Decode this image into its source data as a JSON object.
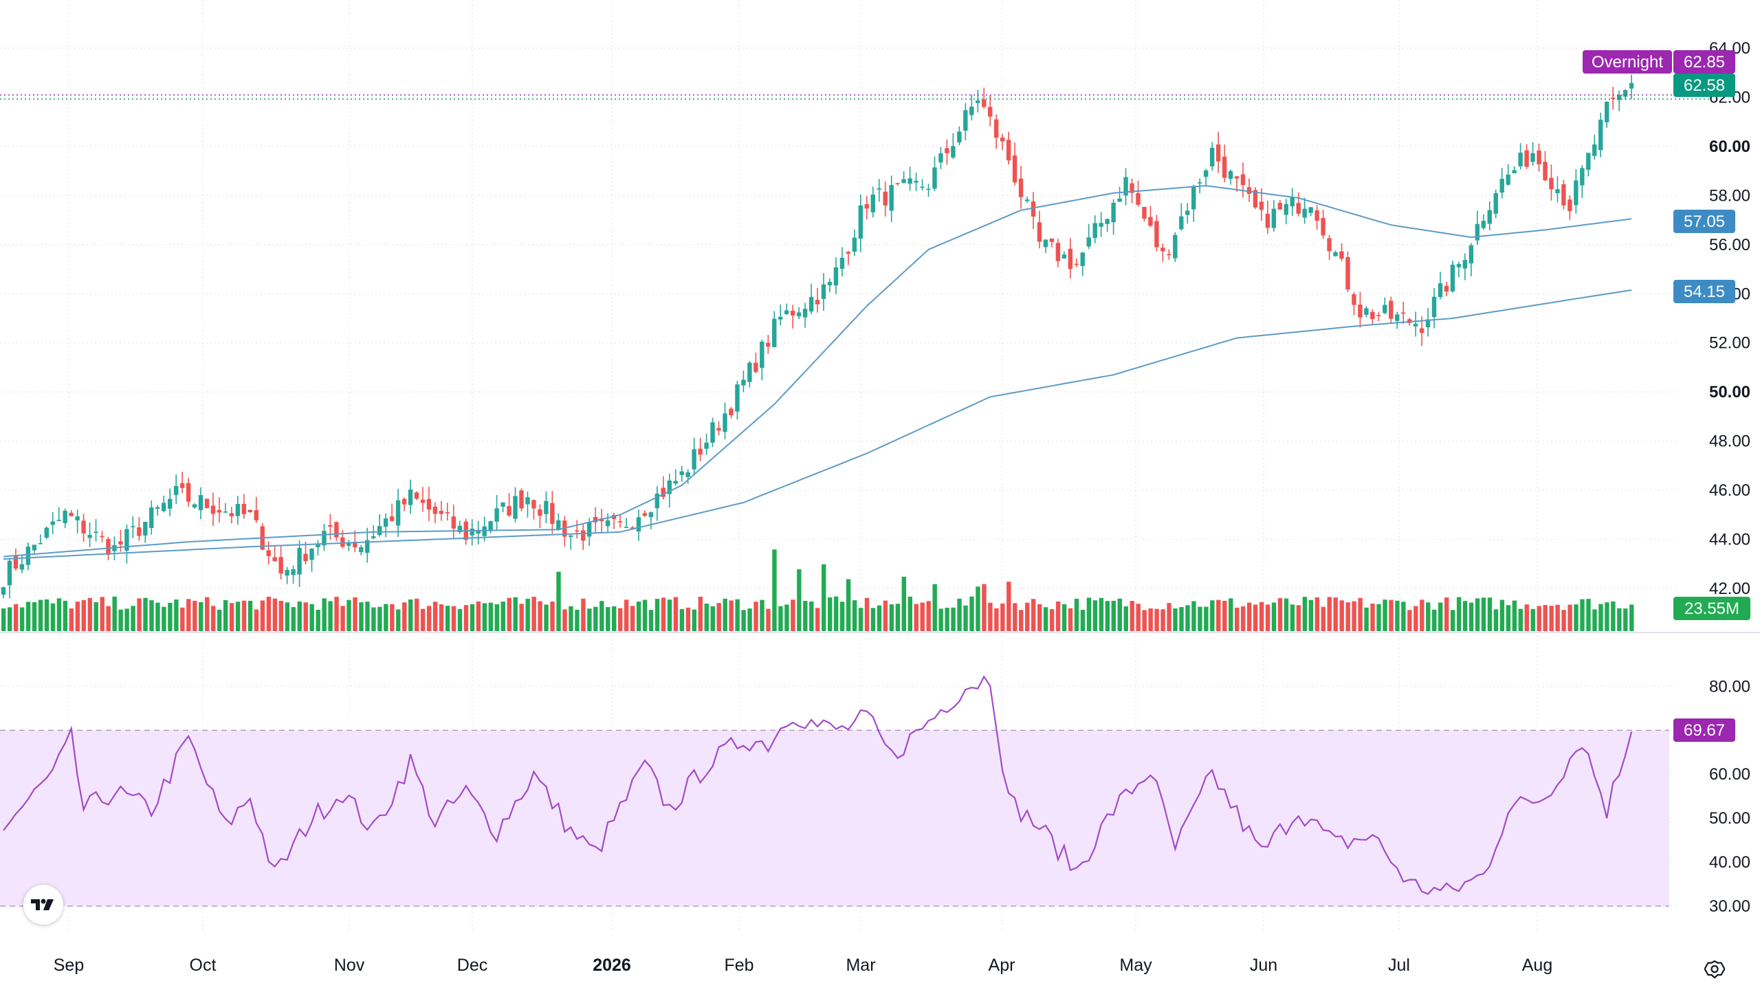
{
  "colors": {
    "up": "#26a69a",
    "up_volume": "#22ab53",
    "down": "#ef5350",
    "ma50": "#5b9bc7",
    "ma200": "#5b9bc7",
    "rsi_line": "#a24bc8",
    "rsi_band": "#f3e5fd",
    "overnight": "#9c27b0",
    "last_price": "#089981",
    "ma_tag": "#3d8bc4",
    "volume_tag": "#22ab53",
    "grid": "#e8e9ec"
  },
  "price_axis": {
    "ticks": [
      "64.00",
      "62.00",
      "60.00",
      "58.00",
      "56.00",
      "54.00",
      "52.00",
      "50.00",
      "48.00",
      "46.00",
      "44.00",
      "42.00"
    ],
    "bold_ticks": [
      "60.00",
      "50.00"
    ]
  },
  "rsi_axis": {
    "ticks": [
      "80.00",
      "60.00",
      "50.00",
      "40.00",
      "30.00"
    ],
    "upper_band": 70,
    "lower_band": 30
  },
  "time_axis": {
    "labels": [
      "Sep",
      "Oct",
      "Nov",
      "Dec",
      "2026",
      "Feb",
      "Mar",
      "Apr",
      "May",
      "Jun",
      "Jul",
      "Aug"
    ],
    "bold_labels": [
      "2026"
    ]
  },
  "tags": {
    "overnight_label": "Overnight",
    "overnight_price": "62.85",
    "last_price": "62.58",
    "ma50": "57.05",
    "ma200": "54.15",
    "volume": "23.55M",
    "rsi": "69.67"
  },
  "chart_data": {
    "type": "candlestick",
    "symbol_interval": "daily",
    "price_range": [
      42,
      64
    ],
    "rsi_range": [
      25,
      86
    ],
    "keyframes": {
      "close": [
        [
          0,
          42.5
        ],
        [
          10,
          45.0
        ],
        [
          18,
          43.6
        ],
        [
          28,
          45.8
        ],
        [
          40,
          44.9
        ],
        [
          45,
          42.6
        ],
        [
          52,
          44.2
        ],
        [
          58,
          43.8
        ],
        [
          66,
          45.7
        ],
        [
          75,
          44.2
        ],
        [
          85,
          45.8
        ],
        [
          92,
          44.2
        ],
        [
          100,
          44.5
        ],
        [
          110,
          46.6
        ],
        [
          118,
          49.5
        ],
        [
          126,
          53.0
        ],
        [
          134,
          54.3
        ],
        [
          140,
          57.8
        ],
        [
          150,
          58.5
        ],
        [
          158,
          62.0
        ],
        [
          163,
          59.5
        ],
        [
          168,
          56.0
        ],
        [
          174,
          55.2
        ],
        [
          182,
          58.6
        ],
        [
          188,
          55.5
        ],
        [
          196,
          59.8
        ],
        [
          204,
          57.0
        ],
        [
          212,
          57.9
        ],
        [
          220,
          53.3
        ],
        [
          230,
          52.8
        ],
        [
          236,
          55.2
        ],
        [
          242,
          58.3
        ],
        [
          248,
          59.8
        ],
        [
          254,
          57.6
        ],
        [
          260,
          61.4
        ],
        [
          264,
          62.5
        ]
      ],
      "ma50": [
        [
          0,
          43.3
        ],
        [
          30,
          43.9
        ],
        [
          60,
          44.3
        ],
        [
          90,
          44.4
        ],
        [
          100,
          45.0
        ],
        [
          110,
          46.2
        ],
        [
          125,
          49.5
        ],
        [
          140,
          53.5
        ],
        [
          150,
          55.8
        ],
        [
          165,
          57.4
        ],
        [
          180,
          58.1
        ],
        [
          195,
          58.4
        ],
        [
          210,
          57.9
        ],
        [
          225,
          56.8
        ],
        [
          238,
          56.3
        ],
        [
          250,
          56.6
        ],
        [
          264,
          57.05
        ]
      ],
      "ma200": [
        [
          0,
          43.2
        ],
        [
          40,
          43.7
        ],
        [
          80,
          44.1
        ],
        [
          100,
          44.3
        ],
        [
          120,
          45.5
        ],
        [
          140,
          47.5
        ],
        [
          160,
          49.8
        ],
        [
          180,
          50.7
        ],
        [
          200,
          52.2
        ],
        [
          220,
          52.7
        ],
        [
          235,
          53.0
        ],
        [
          250,
          53.6
        ],
        [
          264,
          54.15
        ]
      ],
      "rsi": [
        [
          0,
          48
        ],
        [
          8,
          60
        ],
        [
          11,
          68
        ],
        [
          13,
          52
        ],
        [
          18,
          56
        ],
        [
          24,
          52
        ],
        [
          30,
          68
        ],
        [
          36,
          48
        ],
        [
          40,
          55
        ],
        [
          44,
          37
        ],
        [
          50,
          50
        ],
        [
          55,
          56
        ],
        [
          60,
          47
        ],
        [
          66,
          63
        ],
        [
          70,
          49
        ],
        [
          75,
          56
        ],
        [
          80,
          47
        ],
        [
          86,
          60
        ],
        [
          92,
          47
        ],
        [
          96,
          42
        ],
        [
          100,
          52
        ],
        [
          104,
          62
        ],
        [
          108,
          52
        ],
        [
          114,
          62
        ],
        [
          120,
          68
        ],
        [
          124,
          67
        ],
        [
          128,
          74
        ],
        [
          132,
          71
        ],
        [
          136,
          70
        ],
        [
          140,
          73
        ],
        [
          144,
          64
        ],
        [
          150,
          72
        ],
        [
          156,
          80
        ],
        [
          160,
          82
        ],
        [
          163,
          54
        ],
        [
          168,
          48
        ],
        [
          174,
          38
        ],
        [
          180,
          52
        ],
        [
          186,
          61
        ],
        [
          190,
          43
        ],
        [
          196,
          60
        ],
        [
          204,
          42
        ],
        [
          210,
          52
        ],
        [
          216,
          44
        ],
        [
          222,
          46
        ],
        [
          228,
          35
        ],
        [
          234,
          33
        ],
        [
          240,
          37
        ],
        [
          244,
          52
        ],
        [
          250,
          55
        ],
        [
          256,
          68
        ],
        [
          260,
          52
        ],
        [
          264,
          69.67
        ]
      ]
    },
    "volume": {
      "base_m": 23.55,
      "spikes": [
        [
          90,
          2.4
        ],
        [
          125,
          3.3
        ],
        [
          129,
          2.5
        ],
        [
          133,
          2.7
        ],
        [
          137,
          2.1
        ],
        [
          146,
          2.2
        ],
        [
          151,
          1.9
        ],
        [
          158,
          1.8
        ],
        [
          159,
          1.9
        ],
        [
          163,
          2.0
        ]
      ]
    },
    "last_close": 62.58,
    "overnight": 62.85,
    "ma50_last": 57.05,
    "ma200_last": 54.15,
    "volume_last": "23.55M",
    "rsi_last": 69.67,
    "bars": 265
  }
}
